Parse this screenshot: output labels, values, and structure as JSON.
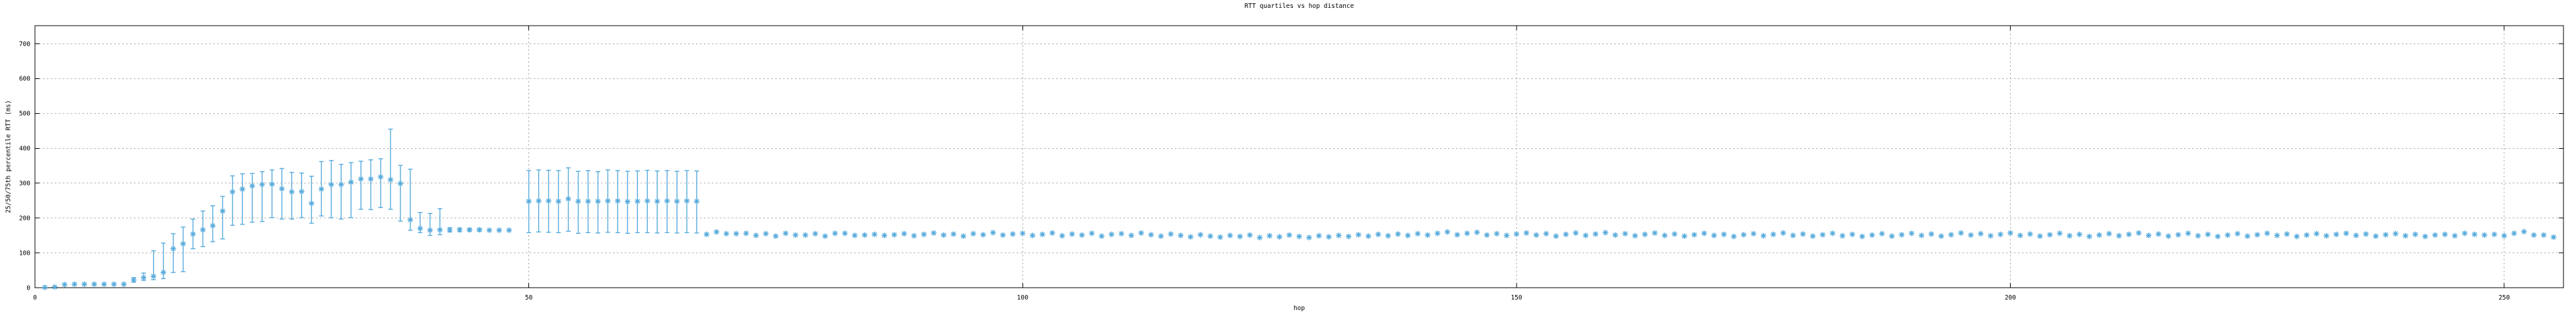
{
  "colors": {
    "accent": "#56AADC",
    "grid": "#adadad",
    "border": "#000000",
    "text": "#000000",
    "background": "#ffffff"
  },
  "chart_data": {
    "type": "scatter",
    "title": "RTT quartiles vs hop distance",
    "xlabel": "hop",
    "ylabel": "25/50/75th percentile RTT (ms)",
    "xlim": [
      0,
      256
    ],
    "ylim": [
      0,
      752
    ],
    "xticks": [
      0,
      50,
      100,
      150,
      200,
      250
    ],
    "yticks": [
      0,
      100,
      200,
      300,
      400,
      500,
      600,
      700
    ],
    "grid": true,
    "legend": "none",
    "marker": "asterisk",
    "series": [
      {
        "name": "RTT quartiles (25th/50th/75th)",
        "color": "#56AADC",
        "point_format": "[hop, median_ms, q25_ms, q75_ms]",
        "points": [
          [
            1,
            1
          ],
          [
            2,
            2
          ],
          [
            3,
            9
          ],
          [
            4,
            10
          ],
          [
            5,
            10
          ],
          [
            6,
            10
          ],
          [
            7,
            10
          ],
          [
            8,
            10
          ],
          [
            9,
            10
          ],
          [
            10,
            22,
            16,
            29
          ],
          [
            11,
            29,
            21,
            42
          ],
          [
            12,
            33,
            23,
            106
          ],
          [
            13,
            44,
            26,
            128
          ],
          [
            14,
            112,
            44,
            155
          ],
          [
            15,
            126,
            46,
            174
          ],
          [
            16,
            154,
            112,
            197
          ],
          [
            17,
            166,
            118,
            220
          ],
          [
            18,
            178,
            132,
            235
          ],
          [
            19,
            220,
            140,
            262
          ],
          [
            20,
            275,
            179,
            321
          ],
          [
            21,
            283,
            182,
            327
          ],
          [
            22,
            292,
            188,
            328
          ],
          [
            23,
            296,
            190,
            333
          ],
          [
            24,
            297,
            201,
            338
          ],
          [
            25,
            284,
            197,
            342
          ],
          [
            26,
            275,
            197,
            331
          ],
          [
            27,
            276,
            201,
            329
          ],
          [
            28,
            242,
            185,
            320
          ],
          [
            29,
            283,
            206,
            362
          ],
          [
            30,
            296,
            201,
            365
          ],
          [
            31,
            296,
            197,
            354
          ],
          [
            32,
            303,
            201,
            359
          ],
          [
            33,
            312,
            225,
            363
          ],
          [
            34,
            312,
            224,
            367
          ],
          [
            35,
            318,
            230,
            370
          ],
          [
            36,
            310,
            225,
            455
          ],
          [
            37,
            299,
            191,
            351
          ],
          [
            38,
            195,
            165,
            340
          ],
          [
            39,
            170,
            158,
            216
          ],
          [
            40,
            165,
            150,
            213
          ],
          [
            41,
            166,
            152,
            227
          ],
          [
            42,
            166,
            160,
            172
          ],
          [
            43,
            166,
            161,
            171
          ],
          [
            44,
            166,
            162,
            170
          ],
          [
            45,
            166,
            162,
            170
          ],
          [
            46,
            165
          ],
          [
            47,
            165
          ],
          [
            48,
            165
          ],
          [
            50,
            248,
            158,
            336
          ],
          [
            51,
            249,
            160,
            338
          ],
          [
            52,
            249,
            159,
            337
          ],
          [
            53,
            248,
            158,
            336
          ],
          [
            54,
            255,
            162,
            344
          ],
          [
            55,
            248,
            156,
            334
          ],
          [
            56,
            248,
            158,
            336
          ],
          [
            57,
            248,
            157,
            333
          ],
          [
            58,
            249,
            159,
            338
          ],
          [
            59,
            249,
            158,
            336
          ],
          [
            60,
            247,
            156,
            334
          ],
          [
            61,
            248,
            158,
            335
          ],
          [
            62,
            249,
            158,
            337
          ],
          [
            63,
            248,
            157,
            335
          ],
          [
            64,
            249,
            158,
            336
          ],
          [
            65,
            248,
            157,
            334
          ],
          [
            66,
            249,
            158,
            336
          ],
          [
            67,
            248,
            157,
            335
          ],
          [
            68,
            153
          ],
          [
            69,
            160
          ],
          [
            70,
            155
          ],
          [
            71,
            155
          ],
          [
            72,
            156
          ],
          [
            73,
            150
          ],
          [
            74,
            155
          ],
          [
            75,
            148
          ],
          [
            76,
            156
          ],
          [
            77,
            151
          ],
          [
            78,
            151
          ],
          [
            79,
            155
          ],
          [
            80,
            148
          ],
          [
            81,
            156
          ],
          [
            82,
            156
          ],
          [
            83,
            150
          ],
          [
            84,
            151
          ],
          [
            85,
            153
          ],
          [
            86,
            150
          ],
          [
            87,
            152
          ],
          [
            88,
            155
          ],
          [
            89,
            149
          ],
          [
            90,
            153
          ],
          [
            91,
            157
          ],
          [
            92,
            151
          ],
          [
            93,
            154
          ],
          [
            94,
            148
          ],
          [
            95,
            155
          ],
          [
            96,
            152
          ],
          [
            97,
            158
          ],
          [
            98,
            151
          ],
          [
            99,
            154
          ],
          [
            100,
            156
          ],
          [
            101,
            150
          ],
          [
            102,
            153
          ],
          [
            103,
            157
          ],
          [
            104,
            149
          ],
          [
            105,
            154
          ],
          [
            106,
            151
          ],
          [
            107,
            156
          ],
          [
            108,
            148
          ],
          [
            109,
            153
          ],
          [
            110,
            155
          ],
          [
            111,
            150
          ],
          [
            112,
            157
          ],
          [
            113,
            152
          ],
          [
            114,
            148
          ],
          [
            115,
            154
          ],
          [
            116,
            150
          ],
          [
            117,
            146
          ],
          [
            118,
            152
          ],
          [
            119,
            148
          ],
          [
            120,
            145
          ],
          [
            121,
            150
          ],
          [
            122,
            147
          ],
          [
            123,
            151
          ],
          [
            124,
            144
          ],
          [
            125,
            149
          ],
          [
            126,
            146
          ],
          [
            127,
            151
          ],
          [
            128,
            147
          ],
          [
            129,
            144
          ],
          [
            130,
            149
          ],
          [
            131,
            146
          ],
          [
            132,
            150
          ],
          [
            133,
            147
          ],
          [
            134,
            152
          ],
          [
            135,
            148
          ],
          [
            136,
            153
          ],
          [
            137,
            149
          ],
          [
            138,
            154
          ],
          [
            139,
            150
          ],
          [
            140,
            155
          ],
          [
            141,
            151
          ],
          [
            142,
            156
          ],
          [
            143,
            160
          ],
          [
            144,
            152
          ],
          [
            145,
            156
          ],
          [
            146,
            159
          ],
          [
            147,
            151
          ],
          [
            148,
            155
          ],
          [
            149,
            150
          ],
          [
            150,
            154
          ],
          [
            151,
            157
          ],
          [
            152,
            151
          ],
          [
            153,
            155
          ],
          [
            154,
            148
          ],
          [
            155,
            153
          ],
          [
            156,
            157
          ],
          [
            157,
            150
          ],
          [
            158,
            154
          ],
          [
            159,
            158
          ],
          [
            160,
            151
          ],
          [
            161,
            155
          ],
          [
            162,
            149
          ],
          [
            163,
            153
          ],
          [
            164,
            157
          ],
          [
            165,
            150
          ],
          [
            166,
            154
          ],
          [
            167,
            148
          ],
          [
            168,
            152
          ],
          [
            169,
            156
          ],
          [
            170,
            150
          ],
          [
            171,
            153
          ],
          [
            172,
            147
          ],
          [
            173,
            152
          ],
          [
            174,
            155
          ],
          [
            175,
            149
          ],
          [
            176,
            153
          ],
          [
            177,
            157
          ],
          [
            178,
            150
          ],
          [
            179,
            154
          ],
          [
            180,
            148
          ],
          [
            181,
            152
          ],
          [
            182,
            156
          ],
          [
            183,
            149
          ],
          [
            184,
            153
          ],
          [
            185,
            147
          ],
          [
            186,
            151
          ],
          [
            187,
            155
          ],
          [
            188,
            148
          ],
          [
            189,
            152
          ],
          [
            190,
            156
          ],
          [
            191,
            150
          ],
          [
            192,
            154
          ],
          [
            193,
            148
          ],
          [
            194,
            152
          ],
          [
            195,
            157
          ],
          [
            196,
            151
          ],
          [
            197,
            155
          ],
          [
            198,
            149
          ],
          [
            199,
            153
          ],
          [
            200,
            157
          ],
          [
            201,
            150
          ],
          [
            202,
            154
          ],
          [
            203,
            148
          ],
          [
            204,
            152
          ],
          [
            205,
            156
          ],
          [
            206,
            149
          ],
          [
            207,
            153
          ],
          [
            208,
            147
          ],
          [
            209,
            151
          ],
          [
            210,
            155
          ],
          [
            211,
            149
          ],
          [
            212,
            153
          ],
          [
            213,
            157
          ],
          [
            214,
            150
          ],
          [
            215,
            154
          ],
          [
            216,
            148
          ],
          [
            217,
            152
          ],
          [
            218,
            156
          ],
          [
            219,
            149
          ],
          [
            220,
            153
          ],
          [
            221,
            147
          ],
          [
            222,
            151
          ],
          [
            223,
            155
          ],
          [
            224,
            148
          ],
          [
            225,
            152
          ],
          [
            226,
            156
          ],
          [
            227,
            150
          ],
          [
            228,
            154
          ],
          [
            229,
            147
          ],
          [
            230,
            151
          ],
          [
            231,
            155
          ],
          [
            232,
            149
          ],
          [
            233,
            153
          ],
          [
            234,
            156
          ],
          [
            235,
            150
          ],
          [
            236,
            154
          ],
          [
            237,
            148
          ],
          [
            238,
            152
          ],
          [
            239,
            155
          ],
          [
            240,
            149
          ],
          [
            241,
            153
          ],
          [
            242,
            147
          ],
          [
            243,
            151
          ],
          [
            244,
            153
          ],
          [
            245,
            149
          ],
          [
            246,
            156
          ],
          [
            247,
            153
          ],
          [
            248,
            151
          ],
          [
            249,
            153
          ],
          [
            250,
            149
          ],
          [
            251,
            156
          ],
          [
            252,
            161
          ],
          [
            253,
            151
          ],
          [
            254,
            151
          ],
          [
            255,
            145
          ]
        ]
      }
    ]
  }
}
